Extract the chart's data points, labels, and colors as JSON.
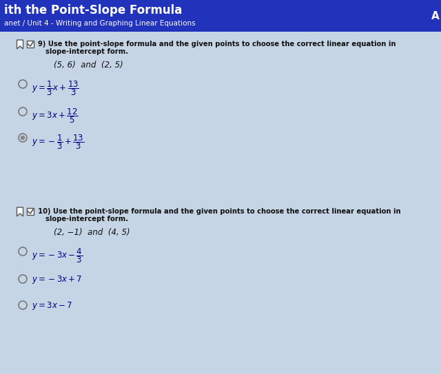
{
  "header_bg": "#2233BB",
  "header_title": "ith the Point-Slope Formula",
  "header_subtitle": "anet / Unit 4 - Writing and Graphing Linear Equations",
  "body_bg": "#C5D5E5",
  "q9_label_1": "9) Use the point-slope formula and the given points to choose the correct linear equation in",
  "q9_label_2": "slope-intercept form.",
  "q9_points": "(5, 6)  and  (2, 5)",
  "q10_label_1": "10) Use the point-slope formula and the given points to choose the correct linear equation in",
  "q10_label_2": "slope-intercept form.",
  "q10_points": "(2, −1)  and  (4, 5)",
  "option_text_color": "#000080",
  "question_text_color": "#111111",
  "header_text_color": "#FFFFFF",
  "circle_color": "#777777",
  "icon_color": "#444444",
  "q9_opt1": "$y = \\dfrac{1}{3}x + \\dfrac{13}{3}$",
  "q9_opt2": "$y = 3x + \\dfrac{12}{5}$",
  "q9_opt3": "$y = -\\dfrac{1}{3} + \\dfrac{13}{3}$",
  "q10_opt1": "$y = -3x - \\dfrac{4}{3}$",
  "q10_opt2": "$y = -3x + 7$",
  "q10_opt3": "$y = 3x - 7$"
}
